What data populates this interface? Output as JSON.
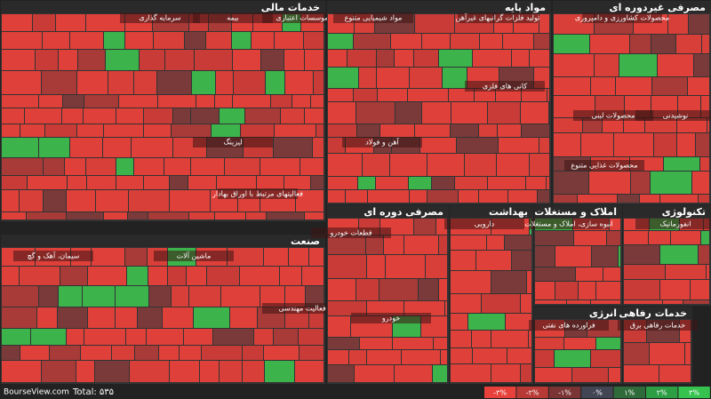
{
  "sectors": [
    {
      "name": "خدمات مالی",
      "subsectors": [
        "سرمایه گذاری",
        "بیمه",
        "موسسات اعتباری",
        "لیزینگ",
        "فعالیتهای مرتبط با اوراق بهادار"
      ]
    },
    {
      "name": "مواد پایه",
      "subsectors": [
        "مواد شیمیایی متنوع",
        "تولید فلزات گرانبهای غیرآهن",
        "کانی های فلزی",
        "آهن و فولاد"
      ]
    },
    {
      "name": "مصرفی غیردوره ای",
      "subsectors": [
        "محصولات کشاورزی و دامپروری",
        "محصولات لبنی",
        "نوشیدنی",
        "محصولات غذایی متنوع"
      ]
    },
    {
      "name": "صنعت",
      "subsectors": [
        "سیمان، آهک و گچ",
        "ماشین آلات",
        "فعالیت مهندسی"
      ]
    },
    {
      "name": "مصرفی دوره ای",
      "subsectors": [
        "قطعات خودرو",
        "خودرو"
      ]
    },
    {
      "name": "بهداشت",
      "subsectors": [
        "دارویی"
      ]
    },
    {
      "name": "املاک و مستغلات",
      "subsectors": [
        "انبوه سازی، املاک و مستغلات"
      ]
    },
    {
      "name": "تکنولوژی",
      "subsectors": [
        "انفورماتیک"
      ]
    },
    {
      "name": "انرژی",
      "subsectors": [
        "فراورده های نفتی"
      ]
    },
    {
      "name": "خدمات رفاهی",
      "subsectors": [
        "خدمات رفاهی برق"
      ]
    }
  ],
  "footer": {
    "site": "BourseView.com",
    "total": "Total: ۵۳۵"
  },
  "legend": [
    "-۳%",
    "-۲%",
    "-۱%",
    "۰%",
    "۱%",
    "۲%",
    "۳%"
  ]
}
